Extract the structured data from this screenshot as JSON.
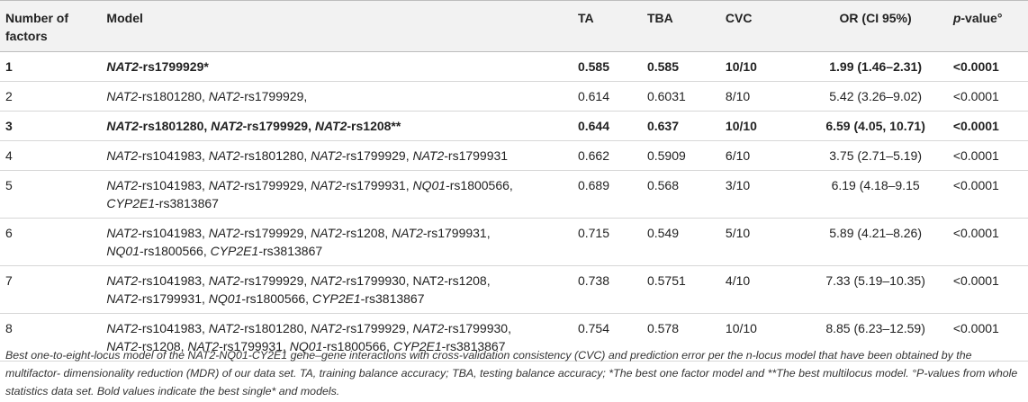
{
  "headers": {
    "factors": "Number of factors",
    "model": "Model",
    "ta": "TA",
    "tba": "TBA",
    "cvc": "CVC",
    "or": "OR (CI 95%)",
    "p_italic": "p",
    "p_suffix": "-value°"
  },
  "rows": [
    {
      "n": "1",
      "bold": true,
      "model_line1": [
        {
          "g": "NAT2",
          "s": "-rs1799929*"
        }
      ],
      "model_line2": [],
      "ta": "0.585",
      "tba": "0.585",
      "cvc": "10/10",
      "or": "1.99 (1.46–2.31)",
      "p": "<0.0001"
    },
    {
      "n": "2",
      "bold": false,
      "model_line1": [
        {
          "g": "NAT2",
          "s": "-rs1801280, "
        },
        {
          "g": "NAT2",
          "s": "-rs1799929,"
        }
      ],
      "model_line2": [],
      "ta": "0.614",
      "tba": "0.6031",
      "cvc": "8/10",
      "or": "5.42 (3.26–9.02)",
      "p": "<0.0001"
    },
    {
      "n": "3",
      "bold": true,
      "model_line1": [
        {
          "g": "NAT2",
          "s": "-rs1801280, "
        },
        {
          "g": "NAT2",
          "s": "-rs1799929, "
        },
        {
          "g": "NAT2",
          "s": "-rs1208**"
        }
      ],
      "model_line2": [],
      "ta": "0.644",
      "tba": "0.637",
      "cvc": "10/10",
      "or": "6.59 (4.05, 10.71)",
      "p": "<0.0001"
    },
    {
      "n": "4",
      "bold": false,
      "model_line1": [
        {
          "g": "NAT2",
          "s": "-rs1041983, "
        },
        {
          "g": "NAT2",
          "s": "-rs1801280, "
        },
        {
          "g": "NAT2",
          "s": "-rs1799929, "
        },
        {
          "g": "NAT2",
          "s": "-rs1799931"
        }
      ],
      "model_line2": [],
      "ta": "0.662",
      "tba": "0.5909",
      "cvc": "6/10",
      "or": "3.75 (2.71–5.19)",
      "p": "<0.0001"
    },
    {
      "n": "5",
      "bold": false,
      "model_line1": [
        {
          "g": "NAT2",
          "s": "-rs1041983, "
        },
        {
          "g": "NAT2",
          "s": "-rs1799929, "
        },
        {
          "g": "NAT2",
          "s": "-rs1799931, "
        },
        {
          "g": "NQ01",
          "s": "-rs1800566,"
        }
      ],
      "model_line2": [
        {
          "g": "CYP2E1",
          "s": "-rs3813867"
        }
      ],
      "ta": "0.689",
      "tba": "0.568",
      "cvc": "3/10",
      "or": "6.19 (4.18–9.15",
      "p": "<0.0001"
    },
    {
      "n": "6",
      "bold": false,
      "model_line1": [
        {
          "g": "NAT2",
          "s": "-rs1041983, "
        },
        {
          "g": "NAT2",
          "s": "-rs1799929, "
        },
        {
          "g": "NAT2",
          "s": "-rs1208, "
        },
        {
          "g": "NAT2",
          "s": "-rs1799931,"
        }
      ],
      "model_line2": [
        {
          "g": "NQ01",
          "s": "-rs1800566, "
        },
        {
          "g": "CYP2E1",
          "s": "-rs3813867"
        }
      ],
      "ta": "0.715",
      "tba": "0.549",
      "cvc": "5/10",
      "or": "5.89 (4.21–8.26)",
      "p": "<0.0001"
    },
    {
      "n": "7",
      "bold": false,
      "model_line1": [
        {
          "g": "NAT2",
          "s": "-rs1041983, "
        },
        {
          "g": "NAT2",
          "s": "-rs1799929, "
        },
        {
          "g": "NAT2",
          "s": "-rs1799930, "
        },
        {
          "g": "",
          "s": "NAT2-rs1208,"
        }
      ],
      "model_line2": [
        {
          "g": "NAT2",
          "s": "-rs1799931, "
        },
        {
          "g": "NQ01",
          "s": "-rs1800566, "
        },
        {
          "g": "CYP2E1",
          "s": "-rs3813867"
        }
      ],
      "ta": "0.738",
      "tba": "0.5751",
      "cvc": "4/10",
      "or": "7.33 (5.19–10.35)",
      "p": "<0.0001"
    },
    {
      "n": "8",
      "bold": false,
      "model_line1": [
        {
          "g": "NAT2",
          "s": "-rs1041983, "
        },
        {
          "g": "NAT2",
          "s": "-rs1801280, "
        },
        {
          "g": "NAT2",
          "s": "-rs1799929, "
        },
        {
          "g": "NAT2",
          "s": "-rs1799930,"
        }
      ],
      "model_line2": [
        {
          "g": "NAT2",
          "s": "-rs1208, "
        },
        {
          "g": "NAT2",
          "s": "-rs1799931, "
        },
        {
          "g": "NQ01",
          "s": "-rs1800566, "
        },
        {
          "g": "CYP2E1",
          "s": "-rs3813867"
        }
      ],
      "ta": "0.754",
      "tba": "0.578",
      "cvc": "10/10",
      "or": "8.85 (6.23–12.59)",
      "p": "<0.0001"
    }
  ],
  "footnote": "Best one-to-eight-locus model of the NAT2-NQ01-CY2E1 gene–gene interactions with cross-validation consistency (CVC) and prediction error per the n-locus model that have been obtained by the multifactor- dimensionality reduction (MDR) of our data set. TA, training balance accuracy; TBA, testing balance accuracy; *The best one factor model and **The best multilocus model. °P-values from whole statistics data set. Bold values indicate the best single* and models."
}
